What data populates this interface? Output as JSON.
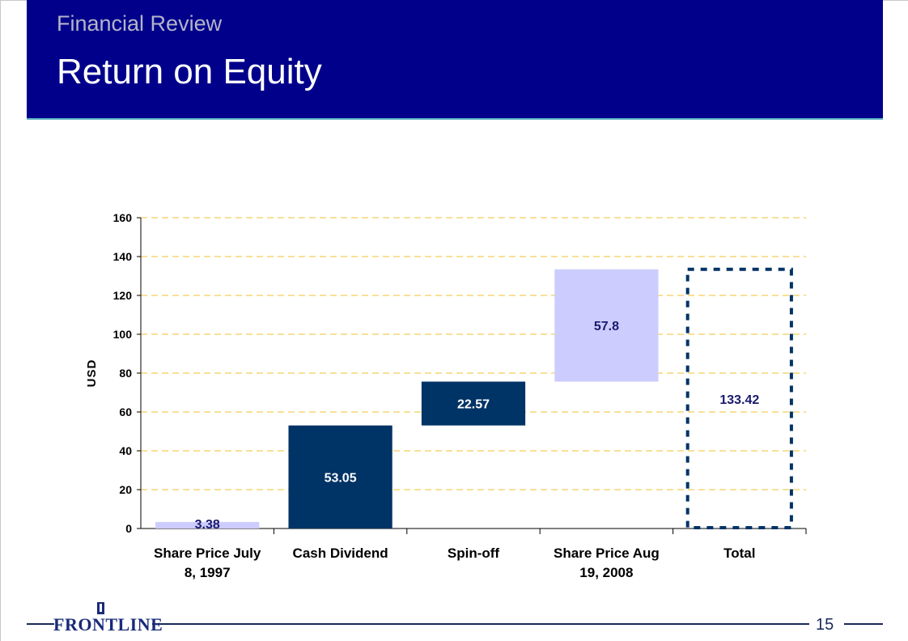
{
  "header": {
    "subtitle": "Financial Review",
    "title": "Return on Equity"
  },
  "footer": {
    "logo_text": "FRONTLINE",
    "page_number": "15"
  },
  "colors": {
    "header_bg": "#00008b",
    "light_bar": "#ccccff",
    "dark_bar": "#003366",
    "gridline": "#f2c12e",
    "label_dark": "#1a1a6e"
  },
  "chart_data": {
    "type": "bar",
    "subtype": "waterfall",
    "title": "",
    "xlabel": "",
    "ylabel": "USD",
    "ylim": [
      0,
      160
    ],
    "yticks": [
      0,
      20,
      40,
      60,
      80,
      100,
      120,
      140,
      160
    ],
    "grid": true,
    "categories": [
      [
        "Share Price July",
        "8, 1997"
      ],
      [
        "Cash Dividend"
      ],
      [
        "Spin-off"
      ],
      [
        "Share Price Aug",
        "19, 2008"
      ],
      [
        "Total"
      ]
    ],
    "bars": [
      {
        "label": "3.38",
        "base": 0,
        "value": 3.38,
        "style": "light"
      },
      {
        "label": "53.05",
        "base": 0,
        "value": 53.05,
        "style": "dark"
      },
      {
        "label": "22.57",
        "base": 53.05,
        "value": 22.57,
        "style": "dark"
      },
      {
        "label": "57.8",
        "base": 75.62,
        "value": 57.8,
        "style": "light"
      },
      {
        "label": "133.42",
        "base": 0,
        "value": 133.42,
        "style": "total-dashed"
      }
    ]
  }
}
